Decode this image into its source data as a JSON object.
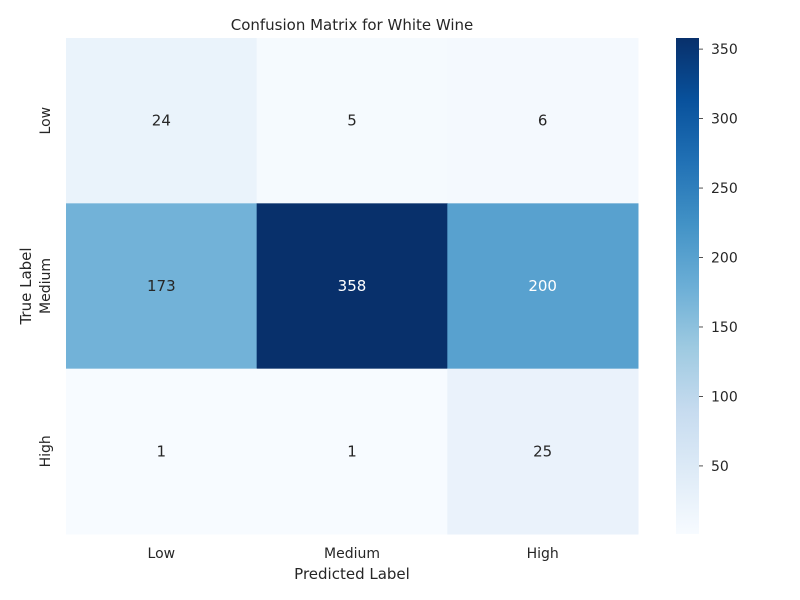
{
  "chart_data": {
    "type": "heatmap",
    "title": "Confusion Matrix for White Wine",
    "xlabel": "Predicted Label",
    "ylabel": "True Label",
    "x_categories": [
      "Low",
      "Medium",
      "High"
    ],
    "y_categories": [
      "Low",
      "Medium",
      "High"
    ],
    "values": [
      [
        24,
        5,
        6
      ],
      [
        173,
        358,
        200
      ],
      [
        1,
        1,
        25
      ]
    ],
    "colormap": "Blues",
    "colorbar": {
      "min": 1,
      "max": 358,
      "ticks": [
        50,
        100,
        150,
        200,
        250,
        300,
        350
      ]
    },
    "grid": false
  }
}
